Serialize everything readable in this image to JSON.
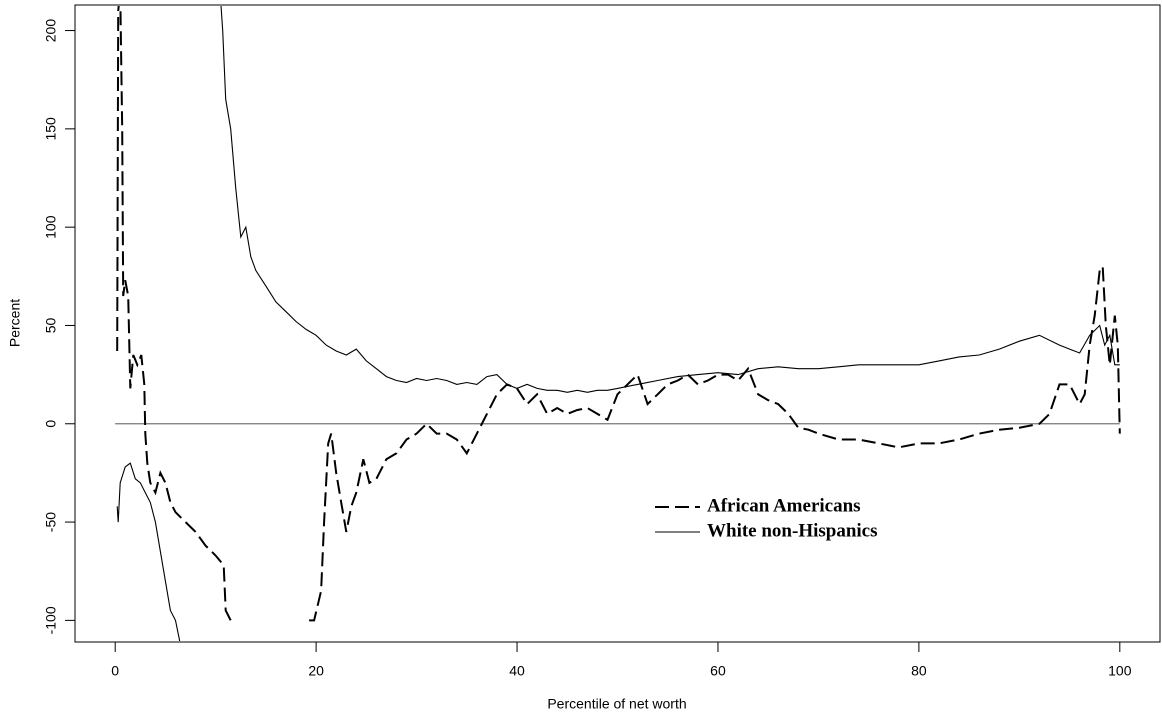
{
  "chart_data": {
    "type": "line",
    "x_label": "Percentile of net worth",
    "y_label": "Percent",
    "xlim": [
      -4,
      104
    ],
    "ylim": [
      -111,
      213
    ],
    "xticks": [
      0,
      20,
      40,
      60,
      80,
      100
    ],
    "yticks": [
      -100,
      -50,
      0,
      50,
      100,
      150,
      200
    ],
    "reference_line": 0,
    "legend": "bottom-center",
    "series": [
      {
        "name": "African Americans",
        "color": "#000000",
        "line_style": "dashed",
        "x": [
          0.2,
          0.3,
          0.5,
          0.7,
          0.8,
          1.0,
          1.3,
          1.5,
          1.8,
          2.2,
          2.6,
          2.9,
          3.0,
          3.2,
          3.5,
          4.0,
          4.5,
          5.0,
          5.5,
          6.0,
          7.0,
          8.0,
          9.0,
          10.0,
          10.8,
          11.0,
          11.5,
          15,
          19.3,
          19.8,
          20.5,
          20.8,
          21.2,
          21.5,
          22.0,
          22.5,
          23.0,
          23.5,
          24.0,
          24.7,
          25.3,
          26,
          27,
          28,
          29,
          30,
          31,
          32,
          33,
          34,
          35,
          36,
          37,
          38,
          39,
          40,
          41,
          42,
          43,
          44,
          45,
          46,
          47,
          48,
          49,
          50,
          51,
          52,
          53,
          54,
          55,
          56,
          57,
          58,
          59,
          60,
          61,
          62,
          63,
          64,
          65,
          66,
          67,
          68,
          69,
          70,
          72,
          74,
          76,
          78,
          80,
          82,
          84,
          86,
          88,
          90,
          92,
          93,
          94,
          95,
          96,
          96.5,
          97,
          97.5,
          98,
          98.3,
          98.6,
          99,
          99.5,
          99.8,
          100
        ],
        "values": [
          37,
          210,
          220,
          150,
          65,
          73,
          65,
          18,
          35,
          30,
          35,
          20,
          -5,
          -20,
          -30,
          -35,
          -25,
          -30,
          -40,
          -45,
          -50,
          -55,
          -62,
          -67,
          -72,
          -95,
          -100,
          null,
          -100,
          -100,
          -85,
          -50,
          -10,
          -5,
          -25,
          -40,
          -55,
          -42,
          -35,
          -18,
          -30,
          -28,
          -18,
          -15,
          -8,
          -5,
          0,
          -5,
          -5,
          -8,
          -15,
          -5,
          5,
          15,
          20,
          18,
          10,
          15,
          5,
          8,
          5,
          7,
          8,
          5,
          2,
          15,
          20,
          25,
          10,
          15,
          20,
          22,
          25,
          20,
          22,
          25,
          25,
          22,
          28,
          15,
          12,
          10,
          5,
          -2,
          -3,
          -5,
          -8,
          -8,
          -10,
          -12,
          -10,
          -10,
          -8,
          -5,
          -3,
          -2,
          0,
          5,
          20,
          20,
          10,
          15,
          40,
          55,
          78,
          80,
          50,
          30,
          55,
          40,
          -5
        ]
      },
      {
        "name": "White non-Hispanics",
        "color": "#000000",
        "line_style": "solid",
        "x": [
          0.2,
          0.3,
          0.5,
          1.0,
          1.5,
          2.0,
          2.5,
          3.0,
          3.5,
          4.0,
          4.5,
          5.0,
          5.5,
          6.0,
          6.4,
          6.5,
          8,
          10.3,
          10.7,
          11.0,
          11.5,
          12.0,
          12.5,
          13.0,
          13.5,
          14,
          15,
          16,
          17,
          18,
          19,
          20,
          21,
          22,
          23,
          24,
          25,
          26,
          27,
          28,
          29,
          30,
          31,
          32,
          33,
          34,
          35,
          36,
          37,
          38,
          39,
          40,
          41,
          42,
          43,
          44,
          45,
          46,
          47,
          48,
          49,
          50,
          52,
          54,
          56,
          58,
          60,
          62,
          64,
          66,
          68,
          70,
          72,
          74,
          76,
          78,
          80,
          82,
          84,
          86,
          88,
          90,
          92,
          94,
          95,
          96,
          97,
          98,
          98.5,
          99,
          99.5,
          100
        ],
        "values": [
          -42,
          -50,
          -30,
          -22,
          -20,
          -28,
          -30,
          -35,
          -40,
          -50,
          -65,
          -80,
          -95,
          -100,
          -110,
          -115,
          null,
          230,
          200,
          165,
          150,
          120,
          95,
          100,
          85,
          78,
          70,
          62,
          57,
          52,
          48,
          45,
          40,
          37,
          35,
          38,
          32,
          28,
          24,
          22,
          21,
          23,
          22,
          23,
          22,
          20,
          21,
          20,
          24,
          25,
          20,
          18,
          20,
          18,
          17,
          17,
          16,
          17,
          16,
          17,
          17,
          18,
          20,
          22,
          24,
          25,
          26,
          25,
          28,
          29,
          28,
          28,
          29,
          30,
          30,
          30,
          30,
          32,
          34,
          35,
          38,
          42,
          45,
          40,
          38,
          36,
          45,
          50,
          40,
          45,
          30,
          30
        ]
      }
    ]
  }
}
